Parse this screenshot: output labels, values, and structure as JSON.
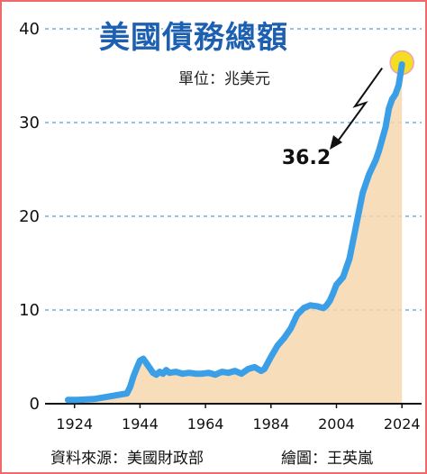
{
  "title": "美國債務總額",
  "unit": "單位：兆美元",
  "source": "資料來源：美國財政部",
  "credit": "繪圖：王英嵐",
  "colors": {
    "line": "#3a9fe6",
    "area": "#f6d7ad",
    "gridline": "#4aa3e0",
    "highlight": "#f5dc1a",
    "title": "#1d5fb1",
    "border": "#f06a6a"
  },
  "chart_data": {
    "type": "area",
    "title": "美國債務總額",
    "xlabel": "",
    "ylabel": "",
    "xlim": [
      1915,
      2030
    ],
    "ylim": [
      0,
      40
    ],
    "x_ticks": [
      1924,
      1944,
      1964,
      1984,
      2004,
      2024
    ],
    "y_ticks": [
      0,
      10,
      20,
      30,
      40
    ],
    "grid": "horizontal dashed",
    "series": [
      {
        "points": [
          [
            1922,
            0.4
          ],
          [
            1925,
            0.4
          ],
          [
            1930,
            0.5
          ],
          [
            1935,
            0.8
          ],
          [
            1940,
            1.1
          ],
          [
            1941,
            1.8
          ],
          [
            1942,
            2.9
          ],
          [
            1943,
            3.8
          ],
          [
            1944,
            4.6
          ],
          [
            1945,
            4.8
          ],
          [
            1946,
            4.3
          ],
          [
            1947,
            3.8
          ],
          [
            1948,
            3.3
          ],
          [
            1949,
            3.1
          ],
          [
            1950,
            3.4
          ],
          [
            1951,
            3.2
          ],
          [
            1952,
            3.6
          ],
          [
            1953,
            3.3
          ],
          [
            1955,
            3.4
          ],
          [
            1957,
            3.2
          ],
          [
            1959,
            3.3
          ],
          [
            1961,
            3.2
          ],
          [
            1963,
            3.2
          ],
          [
            1965,
            3.3
          ],
          [
            1967,
            3.1
          ],
          [
            1969,
            3.4
          ],
          [
            1971,
            3.3
          ],
          [
            1973,
            3.5
          ],
          [
            1975,
            3.2
          ],
          [
            1977,
            3.7
          ],
          [
            1979,
            3.9
          ],
          [
            1981,
            3.5
          ],
          [
            1982,
            3.7
          ],
          [
            1984,
            5.0
          ],
          [
            1986,
            6.2
          ],
          [
            1988,
            7.0
          ],
          [
            1990,
            8.0
          ],
          [
            1992,
            9.5
          ],
          [
            1994,
            10.2
          ],
          [
            1996,
            10.5
          ],
          [
            1998,
            10.4
          ],
          [
            2000,
            10.2
          ],
          [
            2001,
            10.5
          ],
          [
            2002,
            11.0
          ],
          [
            2003,
            11.8
          ],
          [
            2004,
            12.7
          ],
          [
            2006,
            13.5
          ],
          [
            2008,
            15.5
          ],
          [
            2010,
            19.0
          ],
          [
            2012,
            22.5
          ],
          [
            2014,
            24.5
          ],
          [
            2016,
            26.0
          ],
          [
            2017,
            27.0
          ],
          [
            2019,
            29.5
          ],
          [
            2020,
            31.5
          ],
          [
            2021,
            32.5
          ],
          [
            2022,
            33.0
          ],
          [
            2023,
            34.0
          ],
          [
            2024,
            36.2
          ]
        ]
      }
    ],
    "annotations": [
      {
        "label": "36.2",
        "x": 2024,
        "y": 36.2
      }
    ]
  }
}
